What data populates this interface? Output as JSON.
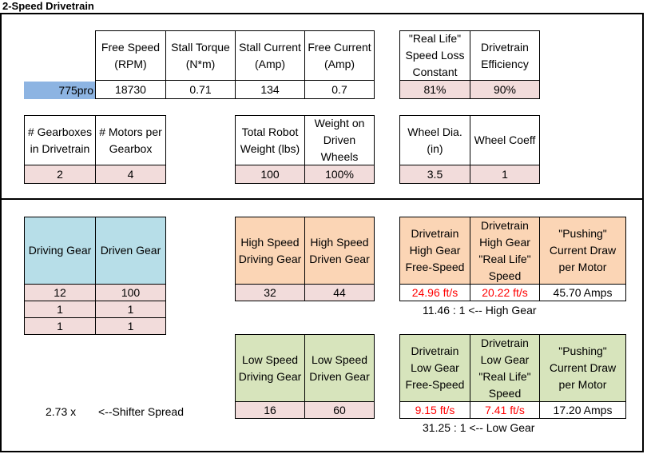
{
  "title": "2-Speed Drivetrain",
  "motor": {
    "name": "775pro",
    "headers": [
      "Free Speed (RPM)",
      "Stall Torque (N*m)",
      "Stall Current (Amp)",
      "Free Current (Amp)"
    ],
    "values": [
      "18730",
      "0.71",
      "134",
      "0.7"
    ]
  },
  "loss": {
    "headers": [
      "\"Real Life\" Speed Loss Constant",
      "Drivetrain Efficiency"
    ],
    "values": [
      "81%",
      "90%"
    ]
  },
  "gearbox": {
    "headers": [
      "# Gearboxes in Drivetrain",
      "# Motors per Gearbox"
    ],
    "values": [
      "2",
      "4"
    ]
  },
  "robot": {
    "headers": [
      "Total Robot Weight (lbs)",
      "Weight on Driven Wheels"
    ],
    "values": [
      "100",
      "100%"
    ]
  },
  "wheel": {
    "headers": [
      "Wheel Dia. (in)",
      "Wheel Coeff"
    ],
    "values": [
      "3.5",
      "1"
    ]
  },
  "stages": {
    "headers": [
      "Driving Gear",
      "Driven Gear"
    ],
    "rows": [
      [
        "12",
        "100"
      ],
      [
        "1",
        "1"
      ],
      [
        "1",
        "1"
      ]
    ]
  },
  "high": {
    "headers": [
      "High Speed Driving Gear",
      "High Speed Driven Gear"
    ],
    "values": [
      "32",
      "44"
    ],
    "result_headers": [
      "Drivetrain High Gear Free-Speed",
      "Drivetrain High Gear \"Real Life\" Speed",
      "\"Pushing\" Current Draw per Motor"
    ],
    "results": [
      "24.96 ft/s",
      "20.22 ft/s",
      "45.70 Amps"
    ],
    "ratio": "11.46 : 1 <-- High Gear"
  },
  "low": {
    "headers": [
      "Low Speed Driving Gear",
      "Low Speed Driven Gear"
    ],
    "values": [
      "16",
      "60"
    ],
    "result_headers": [
      "Drivetrain Low Gear Free-Speed",
      "Drivetrain Low Gear \"Real Life\" Speed",
      "\"Pushing\" Current Draw per Motor"
    ],
    "results": [
      "9.15 ft/s",
      "7.41 ft/s",
      "17.20 Amps"
    ],
    "ratio": "31.25 : 1 <-- Low Gear"
  },
  "shifter": {
    "value": "2.73 x",
    "label": "<--Shifter Spread"
  },
  "colors": {
    "input_pink": "#f2dcdb",
    "stage_blue": "#b7dee8",
    "high_orange": "#fbd5b5",
    "low_green": "#d7e4bc",
    "motor_blue": "#8db4e2",
    "result_red": "#ff0000"
  }
}
